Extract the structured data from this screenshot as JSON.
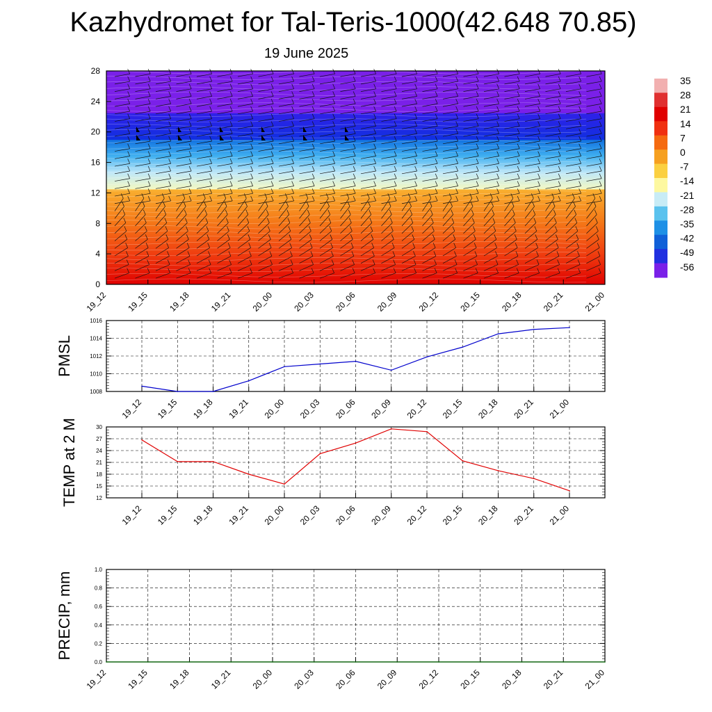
{
  "header": {
    "title": "Kazhydromet for Tal-Teris-1000(42.648 70.85)",
    "date": "19 June 2025"
  },
  "chart_data": [
    {
      "type": "heatmap",
      "name": "height-time cross section",
      "categories": [
        "19_12",
        "19_15",
        "19_18",
        "19_21",
        "20_00",
        "20_03",
        "20_06",
        "20_09",
        "20_12",
        "20_15",
        "20_18",
        "20_21",
        "21_00"
      ],
      "ylim": [
        0,
        28
      ],
      "yticks": [
        0,
        4,
        8,
        12,
        16,
        20,
        24,
        28
      ],
      "colorbar": {
        "labels": [
          "35",
          "28",
          "21",
          "14",
          "7",
          "0",
          "-7",
          "-14",
          "-21",
          "-28",
          "-35",
          "-42",
          "-49",
          "-56"
        ],
        "colors": [
          "#f2b0b0",
          "#e03030",
          "#e00000",
          "#f03010",
          "#f56a10",
          "#f6a020",
          "#fbd040",
          "#fdf8a0",
          "#c8ecf6",
          "#5ac2ee",
          "#1e90e6",
          "#1060d8",
          "#2030e0",
          "#7a20e8"
        ]
      },
      "bands": [
        {
          "from": 0,
          "to": 12.5,
          "colors": [
            "#e00000",
            "#f04010",
            "#f57a18",
            "#f9b030"
          ]
        },
        {
          "from": 12.5,
          "to": 19,
          "colors": [
            "#f4f8c0",
            "#c0e8f8",
            "#40b0f0",
            "#1070e0"
          ]
        },
        {
          "from": 19,
          "to": 22.5,
          "colors": [
            "#1030e0",
            "#3020e8"
          ]
        },
        {
          "from": 22.5,
          "to": 28,
          "colors": [
            "#7a20e8",
            "#7a20e8"
          ]
        }
      ]
    },
    {
      "type": "line",
      "ylabel": "PMSL",
      "categories": [
        "19_12",
        "19_15",
        "19_18",
        "19_21",
        "20_00",
        "20_03",
        "20_06",
        "20_09",
        "20_12",
        "20_15",
        "20_18",
        "20_21",
        "21_00"
      ],
      "values": [
        1008.6,
        1008.0,
        1008.0,
        1009.2,
        1010.8,
        1011.1,
        1011.4,
        1010.4,
        1011.9,
        1013.0,
        1014.5,
        1015.0,
        1015.2
      ],
      "ylim": [
        1008,
        1016
      ],
      "yticks": [
        1008,
        1010,
        1012,
        1014,
        1016
      ],
      "color": "#0000cc"
    },
    {
      "type": "line",
      "ylabel": "TEMP at 2 M",
      "categories": [
        "19_12",
        "19_15",
        "19_18",
        "19_21",
        "20_00",
        "20_03",
        "20_06",
        "20_09",
        "20_12",
        "20_15",
        "20_18",
        "20_21",
        "21_00"
      ],
      "values": [
        26.7,
        21.2,
        21.2,
        18.0,
        15.5,
        23.2,
        25.9,
        29.5,
        28.8,
        21.4,
        18.9,
        16.9,
        13.8
      ],
      "ylim": [
        12,
        30
      ],
      "yticks": [
        12,
        15,
        18,
        21,
        24,
        27,
        30
      ],
      "color": "#e00000"
    },
    {
      "type": "line",
      "ylabel": "PRECIP, mm",
      "categories": [
        "19_12",
        "19_15",
        "19_18",
        "19_21",
        "20_00",
        "20_03",
        "20_06",
        "20_09",
        "20_12",
        "20_15",
        "20_18",
        "20_21",
        "21_00"
      ],
      "values": [
        0,
        0,
        0,
        0,
        0,
        0,
        0,
        0,
        0,
        0,
        0,
        0,
        0
      ],
      "ylim": [
        0,
        1
      ],
      "yticks": [
        "0.0",
        "0.2",
        "0.4",
        "0.6",
        "0.8",
        "1.0"
      ],
      "color": "#006600"
    }
  ]
}
